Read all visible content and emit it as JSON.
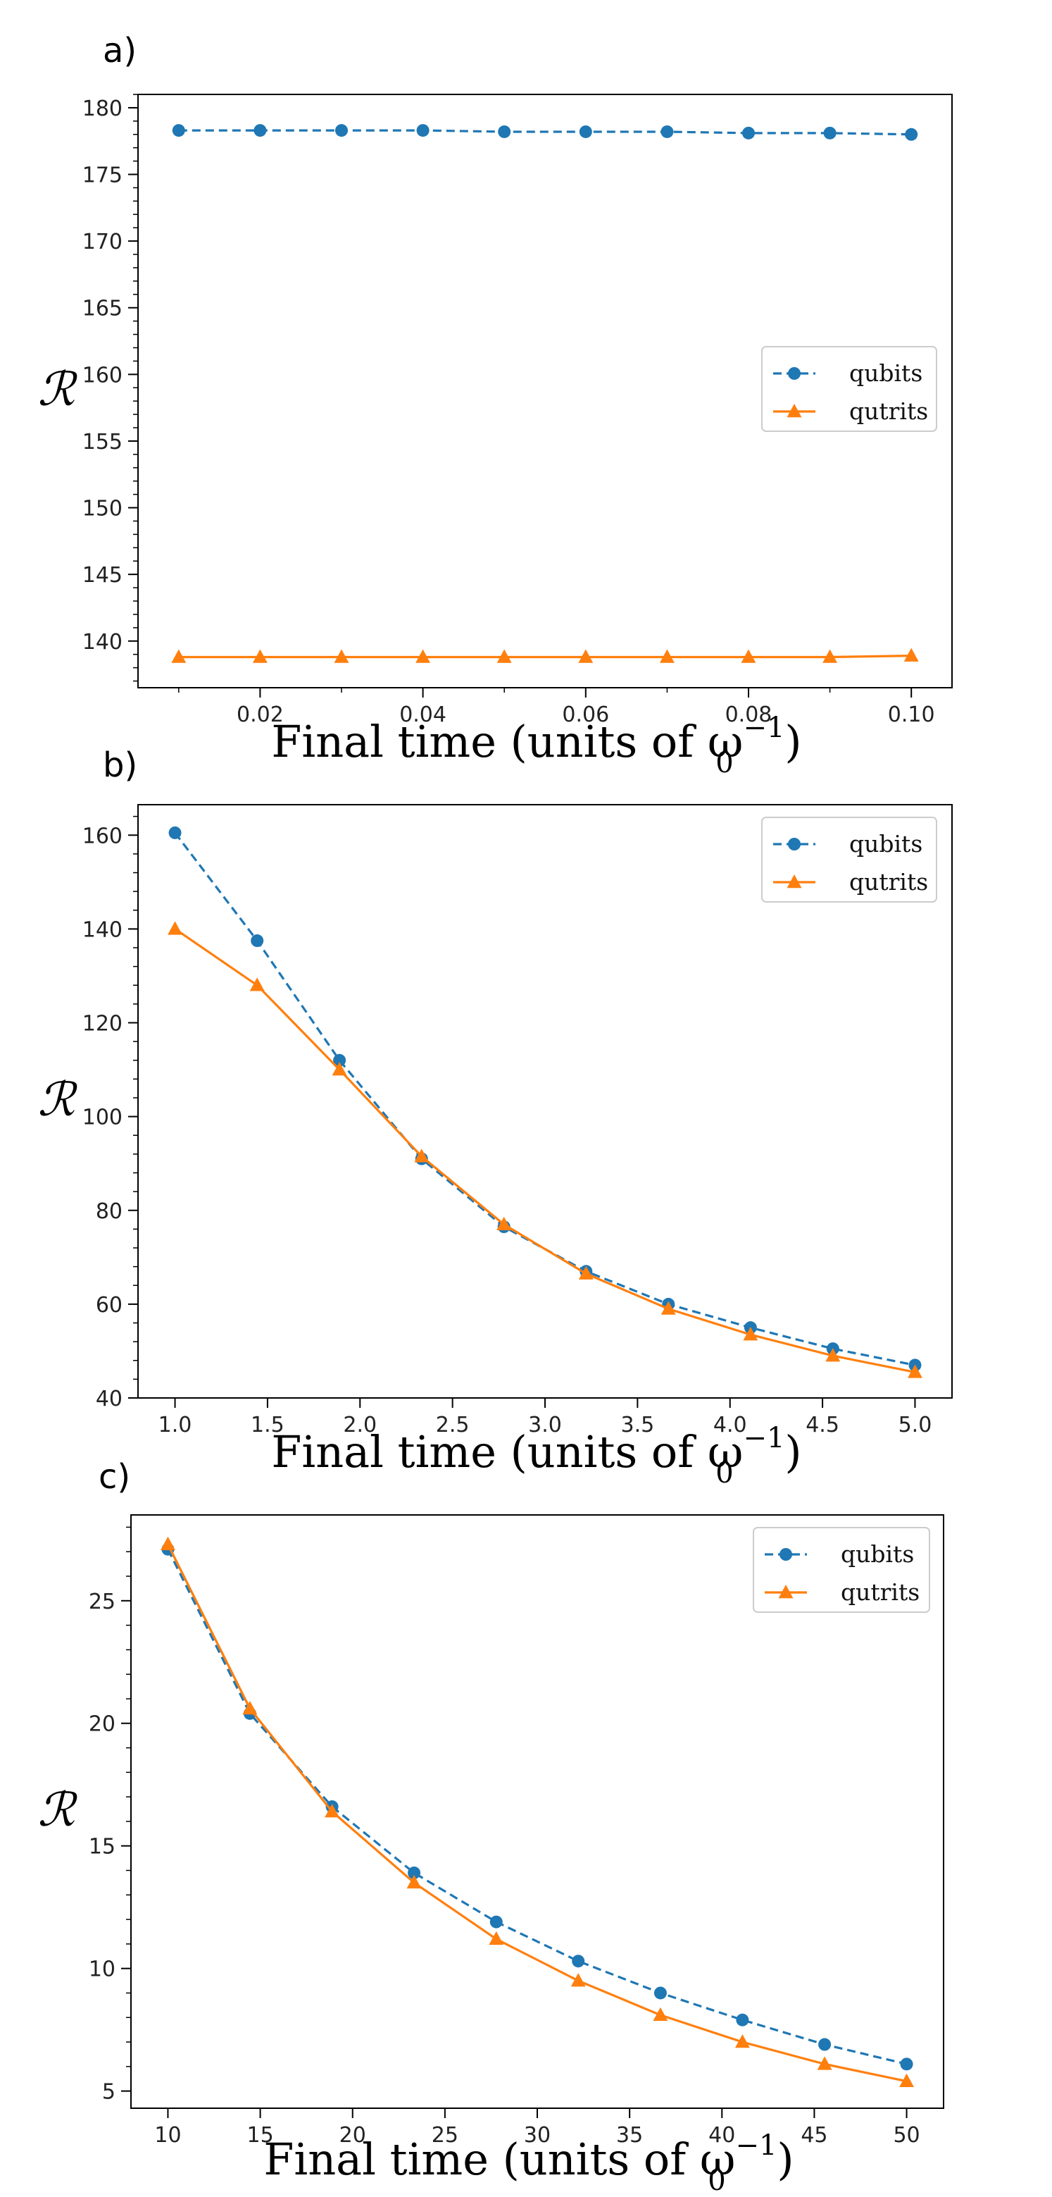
{
  "colors": {
    "qubits": "#1f77b4",
    "qutrits": "#ff7f0e",
    "axis": "#000000",
    "legend_border": "#cccccc"
  },
  "chart_data": [
    {
      "type": "line",
      "panel_label": "a)",
      "xlabel": "Final time (units of ω",
      "xlabel_sub": "0",
      "xlabel_sup": "−1",
      "xlabel_end": ")",
      "ylabel": "ℛ",
      "xlim": [
        0.005,
        0.105
      ],
      "ylim": [
        136.5,
        181
      ],
      "xticks": [
        0.02,
        0.04,
        0.06,
        0.08,
        0.1
      ],
      "xtick_labels": [
        "0.02",
        "0.04",
        "0.06",
        "0.08",
        "0.10"
      ],
      "xminor": [
        0.01,
        0.03,
        0.05,
        0.07,
        0.09
      ],
      "yticks": [
        140,
        145,
        150,
        155,
        160,
        165,
        170,
        175,
        180
      ],
      "ytick_labels": [
        "140",
        "145",
        "150",
        "155",
        "160",
        "165",
        "170",
        "175",
        "180"
      ],
      "legend_position": "center-right",
      "x": [
        0.01,
        0.02,
        0.03,
        0.04,
        0.05,
        0.06,
        0.07,
        0.08,
        0.09,
        0.1
      ],
      "series": [
        {
          "name": "qubits",
          "marker": "circle",
          "dash": "dashed",
          "values": [
            178.3,
            178.3,
            178.3,
            178.3,
            178.2,
            178.2,
            178.2,
            178.1,
            178.1,
            178.0
          ]
        },
        {
          "name": "qutrits",
          "marker": "triangle",
          "dash": "solid",
          "values": [
            138.8,
            138.8,
            138.8,
            138.8,
            138.8,
            138.8,
            138.8,
            138.8,
            138.8,
            138.9
          ]
        }
      ]
    },
    {
      "type": "line",
      "panel_label": "b)",
      "xlabel": "Final time (units of ω",
      "xlabel_sub": "0",
      "xlabel_sup": "−1",
      "xlabel_end": ")",
      "ylabel": "ℛ",
      "xlim": [
        0.8,
        5.2
      ],
      "ylim": [
        40,
        166.5
      ],
      "xticks": [
        1.0,
        1.5,
        2.0,
        2.5,
        3.0,
        3.5,
        4.0,
        4.5,
        5.0
      ],
      "xtick_labels": [
        "1.0",
        "1.5",
        "2.0",
        "2.5",
        "3.0",
        "3.5",
        "4.0",
        "4.5",
        "5.0"
      ],
      "xminor": [],
      "yticks": [
        40,
        60,
        80,
        100,
        120,
        140,
        160
      ],
      "ytick_labels": [
        "40",
        "60",
        "80",
        "100",
        "120",
        "140",
        "160"
      ],
      "legend_position": "top-right",
      "x": [
        1.0,
        1.444,
        1.889,
        2.333,
        2.778,
        3.222,
        3.667,
        4.111,
        4.556,
        5.0
      ],
      "series": [
        {
          "name": "qubits",
          "marker": "circle",
          "dash": "dashed",
          "values": [
            160.5,
            137.5,
            112.0,
            91.0,
            76.5,
            67.0,
            60.0,
            55.0,
            50.5,
            47.0
          ]
        },
        {
          "name": "qutrits",
          "marker": "triangle",
          "dash": "solid",
          "values": [
            140.0,
            128.0,
            110.0,
            91.5,
            77.0,
            66.5,
            59.0,
            53.5,
            49.0,
            45.5
          ]
        }
      ]
    },
    {
      "type": "line",
      "panel_label": "c)",
      "xlabel": "Final time (units of ω",
      "xlabel_sub": "0",
      "xlabel_sup": "−1",
      "xlabel_end": ")",
      "ylabel": "ℛ",
      "xlim": [
        8,
        52
      ],
      "ylim": [
        4.3,
        28.5
      ],
      "xticks": [
        10,
        15,
        20,
        25,
        30,
        35,
        40,
        45,
        50
      ],
      "xtick_labels": [
        "10",
        "15",
        "20",
        "25",
        "30",
        "35",
        "40",
        "45",
        "50"
      ],
      "xminor": [],
      "yticks": [
        5,
        10,
        15,
        20,
        25
      ],
      "ytick_labels": [
        "5",
        "10",
        "15",
        "20",
        "25"
      ],
      "legend_position": "top-right",
      "x": [
        10,
        14.44,
        18.89,
        23.33,
        27.78,
        32.22,
        36.67,
        41.11,
        45.56,
        50
      ],
      "series": [
        {
          "name": "qubits",
          "marker": "circle",
          "dash": "dashed",
          "values": [
            27.1,
            20.4,
            16.6,
            13.9,
            11.9,
            10.3,
            9.0,
            7.9,
            6.9,
            6.1
          ]
        },
        {
          "name": "qutrits",
          "marker": "triangle",
          "dash": "solid",
          "values": [
            27.3,
            20.6,
            16.4,
            13.5,
            11.2,
            9.5,
            8.1,
            7.0,
            6.1,
            5.4
          ]
        }
      ]
    }
  ]
}
